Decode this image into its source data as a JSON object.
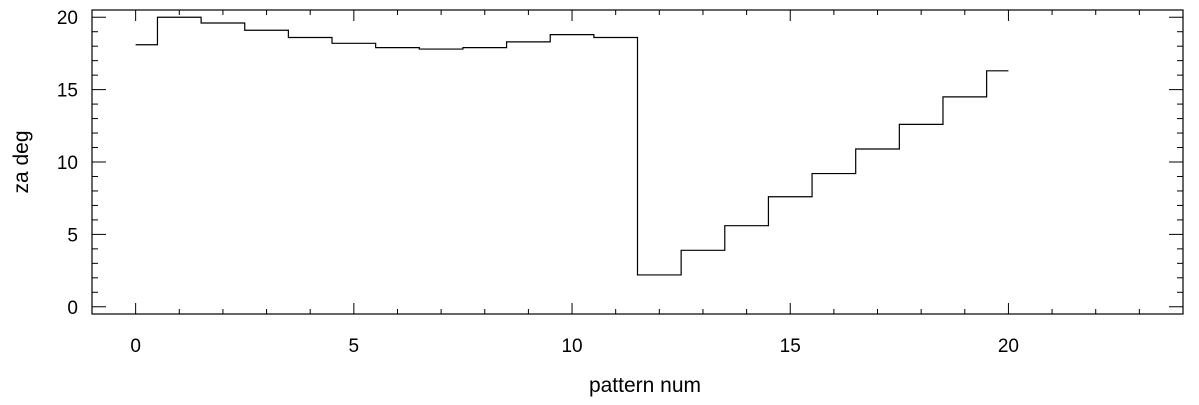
{
  "chart_data": {
    "type": "line",
    "title": "",
    "xlabel": "pattern num",
    "ylabel": "za deg",
    "xlim": [
      -1,
      24
    ],
    "ylim": [
      -0.5,
      20.5
    ],
    "xticks": [
      0,
      5,
      10,
      15,
      20
    ],
    "yticks": [
      0,
      5,
      10,
      15,
      20
    ],
    "step": "mid",
    "grid": false,
    "series": [
      {
        "x": [
          0,
          1,
          2,
          3,
          4,
          5,
          6,
          7,
          8,
          9,
          10,
          11,
          12,
          13,
          14,
          15,
          16,
          17,
          18,
          19,
          20
        ],
        "values": [
          18.1,
          20.0,
          19.6,
          19.1,
          18.6,
          18.2,
          17.9,
          17.8,
          17.9,
          18.3,
          18.8,
          18.6,
          2.2,
          3.9,
          5.6,
          7.6,
          9.2,
          10.9,
          12.6,
          14.5,
          16.3
        ]
      }
    ]
  }
}
